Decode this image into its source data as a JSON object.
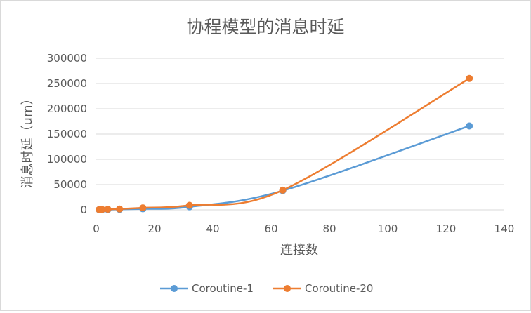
{
  "chart_data": {
    "type": "line",
    "title": "协程模型的消息时延",
    "xlabel": "连接数",
    "ylabel": "消息时延（um）",
    "xlim": [
      0,
      140
    ],
    "ylim": [
      0,
      300000
    ],
    "x_ticks": [
      "0",
      "20",
      "40",
      "60",
      "80",
      "100",
      "120",
      "140"
    ],
    "y_ticks": [
      "0",
      "50000",
      "100000",
      "150000",
      "200000",
      "250000",
      "300000"
    ],
    "grid": "horizontal",
    "legend": "bottom",
    "series": [
      {
        "name": "Coroutine-1",
        "color": "#5b9bd5",
        "x": [
          1,
          2,
          4,
          8,
          16,
          32,
          64,
          128
        ],
        "y": [
          300,
          400,
          600,
          1000,
          2000,
          6000,
          38000,
          166000
        ]
      },
      {
        "name": "Coroutine-20",
        "color": "#ed7d31",
        "x": [
          1,
          2,
          4,
          8,
          16,
          32,
          64,
          128
        ],
        "y": [
          500,
          800,
          1200,
          1800,
          4000,
          9000,
          39000,
          260000
        ]
      }
    ]
  }
}
